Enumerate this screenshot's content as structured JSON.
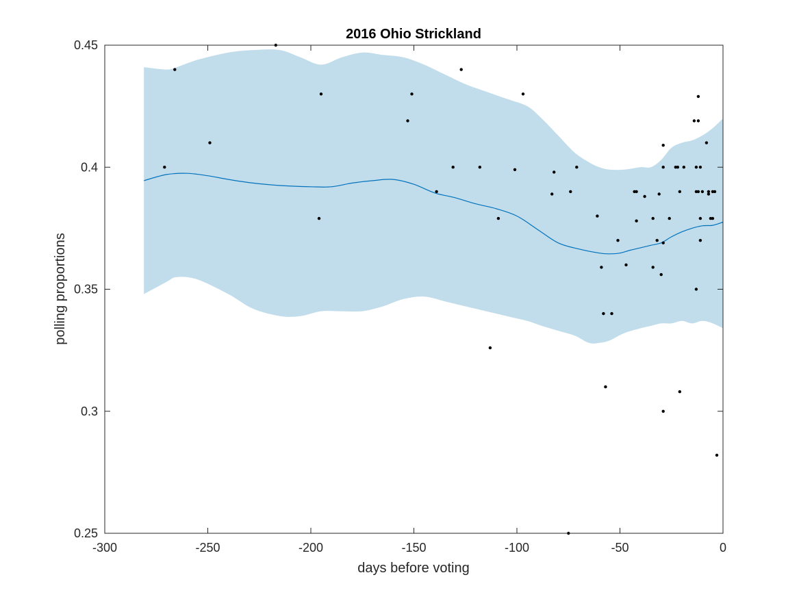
{
  "chart_data": {
    "type": "scatter",
    "title": "2016 Ohio Strickland",
    "xlabel": "days before voting",
    "ylabel": "polling proportions",
    "xlim": [
      -300,
      0
    ],
    "ylim": [
      0.25,
      0.45
    ],
    "xticks": [
      -300,
      -250,
      -200,
      -150,
      -100,
      -50,
      0
    ],
    "xtick_labels": [
      "-300",
      "-250",
      "-200",
      "-150",
      "-100",
      "-50",
      "0"
    ],
    "yticks": [
      0.25,
      0.3,
      0.35,
      0.4,
      0.45
    ],
    "ytick_labels": [
      "0.25",
      "0.3",
      "0.35",
      "0.4",
      "0.45"
    ],
    "grid": false,
    "colors": {
      "band": "#c1dcea",
      "trend": "#0072bd",
      "points": "#000000",
      "axes": "#262626"
    },
    "band": {
      "x": [
        -281,
        -270,
        -265,
        -255,
        -240,
        -228,
        -215,
        -205,
        -195,
        -185,
        -175,
        -165,
        -155,
        -145,
        -135,
        -125,
        -115,
        -105,
        -95,
        -88,
        -80,
        -72,
        -65,
        -60,
        -55,
        -48,
        -40,
        -35,
        -30,
        -25,
        -20,
        -15,
        -10,
        -5,
        0
      ],
      "upper": [
        0.441,
        0.44,
        0.441,
        0.444,
        0.447,
        0.448,
        0.448,
        0.445,
        0.442,
        0.445,
        0.447,
        0.446,
        0.445,
        0.442,
        0.438,
        0.434,
        0.431,
        0.428,
        0.425,
        0.42,
        0.413,
        0.406,
        0.402,
        0.4,
        0.399,
        0.399,
        0.4,
        0.4,
        0.403,
        0.408,
        0.41,
        0.411,
        0.413,
        0.416,
        0.42
      ],
      "lower": [
        0.348,
        0.353,
        0.355,
        0.354,
        0.348,
        0.342,
        0.339,
        0.339,
        0.341,
        0.341,
        0.341,
        0.343,
        0.346,
        0.347,
        0.345,
        0.343,
        0.341,
        0.339,
        0.337,
        0.335,
        0.333,
        0.331,
        0.328,
        0.328,
        0.329,
        0.332,
        0.334,
        0.335,
        0.336,
        0.336,
        0.337,
        0.336,
        0.337,
        0.336,
        0.334
      ]
    },
    "trend": {
      "x": [
        -281,
        -270,
        -260,
        -250,
        -240,
        -228,
        -215,
        -200,
        -190,
        -180,
        -170,
        -160,
        -150,
        -140,
        -130,
        -120,
        -110,
        -100,
        -90,
        -80,
        -70,
        -60,
        -55,
        -50,
        -45,
        -40,
        -35,
        -30,
        -25,
        -20,
        -15,
        -10,
        -5,
        0
      ],
      "y": [
        0.3945,
        0.397,
        0.3975,
        0.3965,
        0.395,
        0.3935,
        0.3925,
        0.392,
        0.392,
        0.3935,
        0.3945,
        0.395,
        0.393,
        0.3895,
        0.3875,
        0.385,
        0.383,
        0.38,
        0.3745,
        0.369,
        0.3665,
        0.3648,
        0.3645,
        0.3648,
        0.366,
        0.367,
        0.368,
        0.369,
        0.3715,
        0.3735,
        0.375,
        0.376,
        0.3762,
        0.3775
      ]
    },
    "points": {
      "x": [
        -271,
        -266,
        -249,
        -217,
        -196,
        -195,
        -153,
        -151,
        -139,
        -131,
        -127,
        -118,
        -113,
        -109,
        -101,
        -97,
        -83,
        -82,
        -74,
        -75,
        -71,
        -61,
        -59,
        -58,
        -57,
        -54,
        -51,
        -47,
        -43,
        -42,
        -42,
        -38,
        -34,
        -34,
        -32,
        -31,
        -30,
        -29,
        -29,
        -29,
        -29,
        -26,
        -23,
        -22,
        -21,
        -21,
        -19,
        -14,
        -13,
        -13,
        -13,
        -12,
        -12,
        -12,
        -11,
        -11,
        -11,
        -10,
        -8,
        -7,
        -7,
        -6,
        -5,
        -5,
        -4,
        -3
      ],
      "y": [
        0.4,
        0.44,
        0.41,
        0.45,
        0.379,
        0.43,
        0.419,
        0.43,
        0.39,
        0.4,
        0.44,
        0.4,
        0.326,
        0.379,
        0.399,
        0.43,
        0.389,
        0.398,
        0.39,
        0.25,
        0.4,
        0.38,
        0.359,
        0.34,
        0.31,
        0.34,
        0.37,
        0.36,
        0.39,
        0.378,
        0.39,
        0.388,
        0.379,
        0.359,
        0.37,
        0.389,
        0.356,
        0.409,
        0.4,
        0.369,
        0.3,
        0.379,
        0.4,
        0.4,
        0.39,
        0.308,
        0.4,
        0.419,
        0.4,
        0.39,
        0.35,
        0.429,
        0.419,
        0.39,
        0.4,
        0.379,
        0.37,
        0.39,
        0.41,
        0.389,
        0.39,
        0.379,
        0.39,
        0.379,
        0.39,
        0.282
      ]
    }
  }
}
